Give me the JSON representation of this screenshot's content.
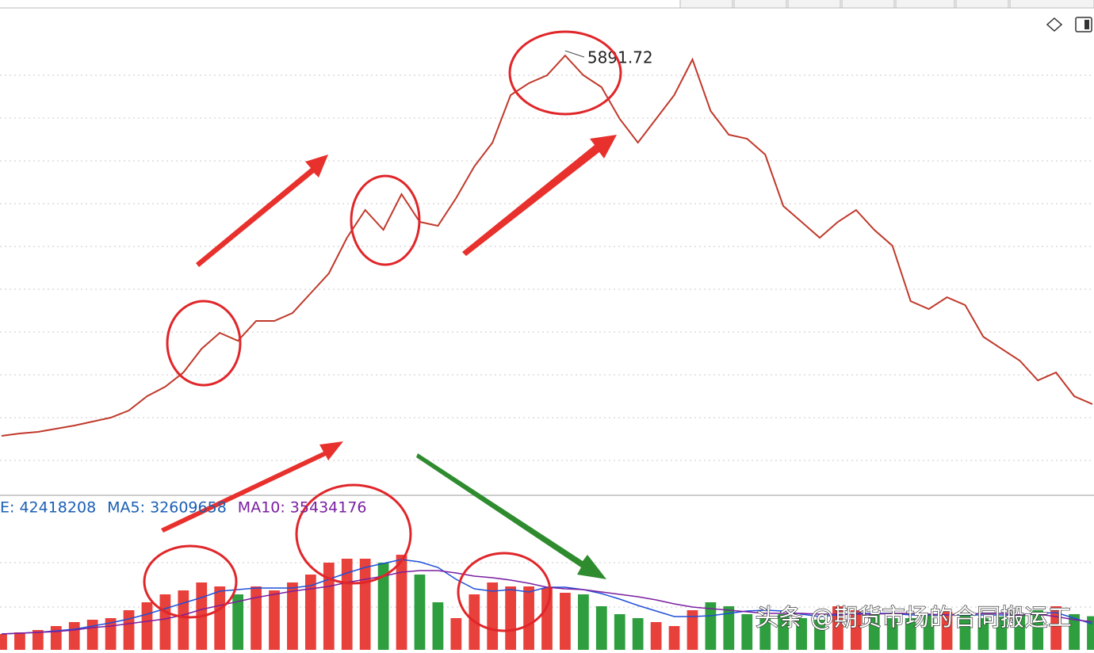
{
  "chart_data": [
    {
      "type": "line",
      "annotation": "5891.72",
      "color": "#c0392b",
      "ylim": [
        600,
        6400
      ],
      "values": [
        1266,
        1294,
        1313,
        1351,
        1389,
        1437,
        1484,
        1570,
        1741,
        1855,
        2026,
        2311,
        2502,
        2407,
        2644,
        2644,
        2739,
        2977,
        3215,
        3643,
        3975,
        3738,
        4166,
        3833,
        3785,
        4118,
        4498,
        4784,
        5354,
        5497,
        5592,
        5829,
        5592,
        5449,
        5069,
        4784,
        5069,
        5354,
        5782,
        5164,
        4879,
        4831,
        4641,
        4023,
        3833,
        3643,
        3833,
        3975,
        3738,
        3547,
        2882,
        2787,
        2929,
        2834,
        2454,
        2311,
        2169,
        1931,
        2026,
        1741,
        1646
      ]
    },
    {
      "type": "bar",
      "ylim": [
        0,
        160000000
      ],
      "up_color": "#e8403a",
      "down_color": "#2e9e3e",
      "legend": [
        {
          "text": "E: 42418208",
          "color": "#1a5fb4"
        },
        {
          "text": "MA5: 32609658",
          "color": "#1a5fb4"
        },
        {
          "text": "MA10: 35434176",
          "color": "#7a1fa0"
        }
      ],
      "watermark": "头条 @期货市场的合同搬运工",
      "values": [
        20000000,
        22000000,
        25000000,
        30000000,
        35000000,
        38000000,
        40000000,
        50000000,
        60000000,
        70000000,
        75000000,
        85000000,
        80000000,
        70000000,
        80000000,
        75000000,
        85000000,
        95000000,
        110000000,
        115000000,
        115000000,
        110000000,
        120000000,
        95000000,
        60000000,
        40000000,
        70000000,
        85000000,
        80000000,
        80000000,
        78000000,
        72000000,
        70000000,
        55000000,
        45000000,
        40000000,
        35000000,
        30000000,
        50000000,
        60000000,
        55000000,
        45000000,
        40000000,
        45000000,
        40000000,
        38000000,
        55000000,
        50000000,
        45000000,
        40000000,
        40000000,
        45000000,
        48000000,
        45000000,
        40000000,
        42000000,
        45000000,
        50000000,
        55000000,
        45000000,
        42418208
      ],
      "series": [
        {
          "color": "#1f4fd8",
          "values": [
            20000000,
            21000000,
            22000000,
            24000000,
            26000000,
            30000000,
            34000000,
            39000000,
            45000000,
            52000000,
            59000000,
            66000000,
            74000000,
            76000000,
            78000000,
            78000000,
            78000000,
            81000000,
            89000000,
            97000000,
            104000000,
            109000000,
            114000000,
            111000000,
            104000000,
            89000000,
            77000000,
            74000000,
            76000000,
            73000000,
            79000000,
            79000000,
            76000000,
            71000000,
            64000000,
            56000000,
            49000000,
            42000000,
            42000000,
            43000000,
            46000000,
            49000000,
            50000000,
            49000000,
            45000000,
            42000000,
            44000000,
            46000000,
            46000000,
            46000000,
            44000000,
            44000000,
            44000000,
            44000000,
            44000000,
            44000000,
            44000000,
            46000000,
            47000000,
            40000000,
            32609658
          ]
        },
        {
          "color": "#7a1fa0",
          "values": [
            20000000,
            21000000,
            22000000,
            23000000,
            25000000,
            28000000,
            30000000,
            33000000,
            36000000,
            39000000,
            44000000,
            51000000,
            56000000,
            61000000,
            66000000,
            70000000,
            74000000,
            77000000,
            80000000,
            85000000,
            89000000,
            93000000,
            98000000,
            100000000,
            100000000,
            97000000,
            93000000,
            91000000,
            88000000,
            84000000,
            79000000,
            77000000,
            76000000,
            73000000,
            70000000,
            67000000,
            63000000,
            58000000,
            54000000,
            52000000,
            50000000,
            48000000,
            46000000,
            46000000,
            46000000,
            45000000,
            45000000,
            45000000,
            45000000,
            46000000,
            46000000,
            45000000,
            44000000,
            45000000,
            46000000,
            46000000,
            44000000,
            45000000,
            42000000,
            38000000,
            35434176
          ]
        }
      ]
    }
  ]
}
